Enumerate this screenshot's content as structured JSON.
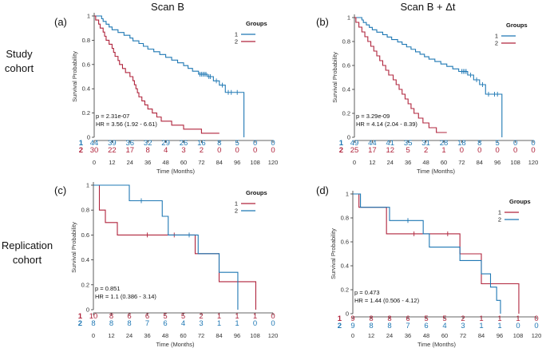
{
  "figure": {
    "headers": {
      "left": "Scan B",
      "right": "Scan B + Δt"
    },
    "row_labels": {
      "study": [
        "Study",
        "cohort"
      ],
      "replication": [
        "Replication",
        "cohort"
      ]
    },
    "colors": {
      "group1": "#1f78b4",
      "group2": "#b0243c"
    }
  },
  "chart_data": [
    {
      "label": "(a)",
      "type": "line",
      "title": "Scan B",
      "xlabel": "Time (Months)",
      "ylabel": "Survival Probability",
      "xlim": [
        0,
        120
      ],
      "ylim": [
        0,
        1
      ],
      "xticks": [
        0,
        12,
        24,
        36,
        48,
        60,
        72,
        84,
        96,
        108,
        120
      ],
      "yticks": [
        0,
        0.2,
        0.4,
        0.6,
        0.8,
        1
      ],
      "legend": {
        "title": "Groups",
        "entries": [
          "1",
          "2"
        ],
        "position": "top-right"
      },
      "stats": {
        "p": "p = 2.31e-07",
        "hr": "HR = 3.56 (1.92 - 6.61)"
      },
      "risk_table": {
        "labels": [
          "1",
          "2"
        ],
        "rows": [
          [
            "44",
            "39",
            "36",
            "32",
            "29",
            "26",
            "16",
            "8",
            "5",
            "0",
            "0"
          ],
          [
            "30",
            "22",
            "17",
            "8",
            "4",
            "3",
            "2",
            "0",
            "0",
            "0",
            "0"
          ]
        ]
      },
      "series": [
        {
          "name": "1",
          "color": "#1f78b4",
          "points": [
            [
              0,
              1
            ],
            [
              4,
              1
            ],
            [
              5,
              0.977
            ],
            [
              6,
              0.955
            ],
            [
              8,
              0.932
            ],
            [
              10,
              0.909
            ],
            [
              12,
              0.886
            ],
            [
              16,
              0.864
            ],
            [
              20,
              0.841
            ],
            [
              24,
              0.818
            ],
            [
              26,
              0.795
            ],
            [
              30,
              0.773
            ],
            [
              33,
              0.75
            ],
            [
              36,
              0.727
            ],
            [
              40,
              0.705
            ],
            [
              44,
              0.682
            ],
            [
              48,
              0.659
            ],
            [
              52,
              0.636
            ],
            [
              56,
              0.614
            ],
            [
              60,
              0.591
            ],
            [
              63,
              0.568
            ],
            [
              66,
              0.545
            ],
            [
              70,
              0.52
            ],
            [
              76,
              0.5
            ],
            [
              80,
              0.465
            ],
            [
              84,
              0.43
            ],
            [
              88,
              0.37
            ],
            [
              100,
              0.37
            ],
            [
              100.5,
              0
            ]
          ],
          "censor": [
            [
              71,
              0.52
            ],
            [
              72,
              0.52
            ],
            [
              73,
              0.52
            ],
            [
              74,
              0.52
            ],
            [
              75,
              0.52
            ],
            [
              77,
              0.5
            ],
            [
              78,
              0.5
            ],
            [
              82,
              0.465
            ],
            [
              86,
              0.43
            ],
            [
              90,
              0.37
            ],
            [
              92,
              0.37
            ],
            [
              96,
              0.37
            ]
          ]
        },
        {
          "name": "2",
          "color": "#b0243c",
          "points": [
            [
              0,
              1
            ],
            [
              1,
              0.967
            ],
            [
              3,
              0.933
            ],
            [
              4,
              0.9
            ],
            [
              6,
              0.867
            ],
            [
              7,
              0.833
            ],
            [
              8,
              0.8
            ],
            [
              10,
              0.767
            ],
            [
              12,
              0.733
            ],
            [
              13,
              0.7
            ],
            [
              14,
              0.667
            ],
            [
              16,
              0.633
            ],
            [
              17,
              0.6
            ],
            [
              19,
              0.567
            ],
            [
              21,
              0.533
            ],
            [
              24,
              0.5
            ],
            [
              26,
              0.467
            ],
            [
              27,
              0.433
            ],
            [
              28,
              0.4
            ],
            [
              29,
              0.367
            ],
            [
              30,
              0.333
            ],
            [
              32,
              0.3
            ],
            [
              34,
              0.267
            ],
            [
              36,
              0.233
            ],
            [
              39,
              0.2
            ],
            [
              42,
              0.167
            ],
            [
              45,
              0.133
            ],
            [
              52,
              0.1
            ],
            [
              60,
              0.067
            ],
            [
              72,
              0.033
            ],
            [
              84,
              0.033
            ]
          ],
          "censor": []
        }
      ]
    },
    {
      "label": "(b)",
      "type": "line",
      "title": "Scan B + Δt",
      "xlabel": "Time (Months)",
      "ylabel": "Survival Probability",
      "xlim": [
        0,
        120
      ],
      "ylim": [
        0,
        1
      ],
      "xticks": [
        0,
        12,
        24,
        36,
        48,
        60,
        72,
        84,
        96,
        108,
        120
      ],
      "yticks": [
        0,
        0.2,
        0.4,
        0.6,
        0.8,
        1
      ],
      "legend": {
        "title": "Groups",
        "entries": [
          "1",
          "2"
        ],
        "position": "top-right"
      },
      "stats": {
        "p": "p = 3.29e-09",
        "hr": "HR = 4.14 (2.04 - 8.39)"
      },
      "risk_table": {
        "labels": [
          "1",
          "2"
        ],
        "rows": [
          [
            "49",
            "44",
            "41",
            "35",
            "31",
            "28",
            "18",
            "8",
            "5",
            "0",
            "0"
          ],
          [
            "25",
            "17",
            "12",
            "5",
            "2",
            "1",
            "0",
            "0",
            "0",
            "0",
            "0"
          ]
        ]
      },
      "series": [
        {
          "name": "1",
          "color": "#1f78b4",
          "points": [
            [
              0,
              1
            ],
            [
              4,
              1
            ],
            [
              5,
              0.98
            ],
            [
              6,
              0.959
            ],
            [
              8,
              0.939
            ],
            [
              10,
              0.918
            ],
            [
              12,
              0.898
            ],
            [
              15,
              0.878
            ],
            [
              19,
              0.857
            ],
            [
              22,
              0.837
            ],
            [
              25,
              0.816
            ],
            [
              29,
              0.796
            ],
            [
              32,
              0.776
            ],
            [
              35,
              0.755
            ],
            [
              38,
              0.735
            ],
            [
              41,
              0.714
            ],
            [
              44,
              0.694
            ],
            [
              47,
              0.673
            ],
            [
              50,
              0.653
            ],
            [
              54,
              0.633
            ],
            [
              58,
              0.612
            ],
            [
              62,
              0.592
            ],
            [
              66,
              0.571
            ],
            [
              70,
              0.55
            ],
            [
              76,
              0.52
            ],
            [
              80,
              0.48
            ],
            [
              84,
              0.44
            ],
            [
              88,
              0.36
            ],
            [
              98,
              0.36
            ],
            [
              98.5,
              0.36
            ],
            [
              99,
              0
            ]
          ],
          "censor": [
            [
              72,
              0.55
            ],
            [
              73,
              0.55
            ],
            [
              74,
              0.55
            ],
            [
              75,
              0.55
            ],
            [
              78,
              0.52
            ],
            [
              82,
              0.48
            ],
            [
              86,
              0.44
            ],
            [
              90,
              0.36
            ],
            [
              94,
              0.36
            ],
            [
              96,
              0.36
            ]
          ]
        },
        {
          "name": "2",
          "color": "#b0243c",
          "points": [
            [
              0,
              1
            ],
            [
              1,
              0.96
            ],
            [
              3,
              0.92
            ],
            [
              5,
              0.88
            ],
            [
              7,
              0.84
            ],
            [
              9,
              0.8
            ],
            [
              11,
              0.76
            ],
            [
              13,
              0.72
            ],
            [
              15,
              0.68
            ],
            [
              17,
              0.64
            ],
            [
              19,
              0.6
            ],
            [
              21,
              0.56
            ],
            [
              23,
              0.52
            ],
            [
              26,
              0.48
            ],
            [
              28,
              0.44
            ],
            [
              30,
              0.4
            ],
            [
              32,
              0.36
            ],
            [
              34,
              0.32
            ],
            [
              36,
              0.28
            ],
            [
              38,
              0.24
            ],
            [
              40,
              0.2
            ],
            [
              43,
              0.16
            ],
            [
              46,
              0.12
            ],
            [
              50,
              0.08
            ],
            [
              55,
              0.04
            ],
            [
              62,
              0.04
            ]
          ],
          "censor": []
        }
      ]
    },
    {
      "label": "(c)",
      "type": "line",
      "title": "",
      "xlabel": "Time (Months)",
      "ylabel": "Survival Probability",
      "xlim": [
        0,
        120
      ],
      "ylim": [
        0,
        1
      ],
      "xticks": [
        0,
        12,
        24,
        36,
        48,
        60,
        72,
        84,
        96,
        108,
        120
      ],
      "yticks": [
        0,
        0.2,
        0.4,
        0.6,
        0.8,
        1
      ],
      "legend": {
        "title": "Groups",
        "entries": [
          "1",
          "2"
        ],
        "position": "top-right"
      },
      "stats": {
        "p": "p = 0.851",
        "hr": "HR = 1.1 (0.386 - 3.14)"
      },
      "risk_table": {
        "labels": [
          "1",
          "2"
        ],
        "rows": [
          [
            "10",
            "8",
            "6",
            "6",
            "5",
            "5",
            "2",
            "1",
            "1",
            "1",
            "0"
          ],
          [
            "8",
            "8",
            "8",
            "7",
            "6",
            "4",
            "3",
            "1",
            "1",
            "0",
            "0"
          ]
        ]
      },
      "series": [
        {
          "name": "1",
          "color": "#b0243c",
          "points": [
            [
              0,
              1
            ],
            [
              3,
              1
            ],
            [
              4,
              0.8
            ],
            [
              8,
              0.7
            ],
            [
              16,
              0.6
            ],
            [
              64,
              0.6
            ],
            [
              68,
              0.45
            ],
            [
              80,
              0.45
            ],
            [
              84,
              0.225
            ],
            [
              108,
              0.225
            ],
            [
              108.5,
              0
            ]
          ],
          "censor": [
            [
              36,
              0.6
            ],
            [
              54,
              0.6
            ]
          ]
        },
        {
          "name": "2",
          "color": "#1f78b4",
          "points": [
            [
              0,
              1
            ],
            [
              20,
              1
            ],
            [
              24,
              0.875
            ],
            [
              40,
              0.875
            ],
            [
              46,
              0.75
            ],
            [
              50,
              0.6
            ],
            [
              66,
              0.6
            ],
            [
              70,
              0.45
            ],
            [
              82,
              0.45
            ],
            [
              84,
              0.3
            ],
            [
              96,
              0.3
            ],
            [
              96.5,
              0
            ]
          ],
          "censor": [
            [
              32,
              0.875
            ],
            [
              64,
              0.6
            ]
          ]
        }
      ]
    },
    {
      "label": "(d)",
      "type": "line",
      "title": "",
      "xlabel": "Time (Months)",
      "ylabel": "Survival Probability",
      "xlim": [
        0,
        120
      ],
      "ylim": [
        0,
        1
      ],
      "xticks": [
        0,
        12,
        24,
        36,
        48,
        60,
        72,
        84,
        96,
        108,
        120
      ],
      "yticks": [
        0,
        0.2,
        0.4,
        0.6,
        0.8,
        1
      ],
      "legend": {
        "title": "Groups",
        "entries": [
          "1",
          "2"
        ],
        "position": "top-right"
      },
      "stats": {
        "p": "p = 0.473",
        "hr": "HR = 1.44 (0.506 - 4.12)"
      },
      "risk_table": {
        "labels": [
          "1",
          "2"
        ],
        "rows": [
          [
            "9",
            "8",
            "8",
            "6",
            "5",
            "5",
            "2",
            "1",
            "1",
            "1",
            "0"
          ],
          [
            "9",
            "8",
            "8",
            "7",
            "6",
            "4",
            "3",
            "1",
            "1",
            "0",
            "0"
          ]
        ]
      },
      "series": [
        {
          "name": "1",
          "color": "#b0243c",
          "points": [
            [
              0,
              1
            ],
            [
              3,
              1
            ],
            [
              4,
              0.889
            ],
            [
              18,
              0.889
            ],
            [
              22,
              0.667
            ],
            [
              66,
              0.667
            ],
            [
              70,
              0.5
            ],
            [
              82,
              0.5
            ],
            [
              84,
              0.25
            ],
            [
              108,
              0.25
            ],
            [
              108.5,
              0
            ]
          ],
          "censor": [
            [
              40,
              0.667
            ],
            [
              62,
              0.667
            ]
          ]
        },
        {
          "name": "2",
          "color": "#1f78b4",
          "points": [
            [
              0,
              1
            ],
            [
              4,
              1
            ],
            [
              5,
              0.889
            ],
            [
              20,
              0.889
            ],
            [
              24,
              0.778
            ],
            [
              40,
              0.778
            ],
            [
              46,
              0.667
            ],
            [
              50,
              0.556
            ],
            [
              66,
              0.556
            ],
            [
              70,
              0.444
            ],
            [
              82,
              0.444
            ],
            [
              84,
              0.333
            ],
            [
              90,
              0.222
            ],
            [
              94,
              0.111
            ],
            [
              96,
              0.111
            ],
            [
              96.5,
              0
            ]
          ],
          "censor": [
            [
              36,
              0.778
            ]
          ]
        }
      ]
    }
  ]
}
